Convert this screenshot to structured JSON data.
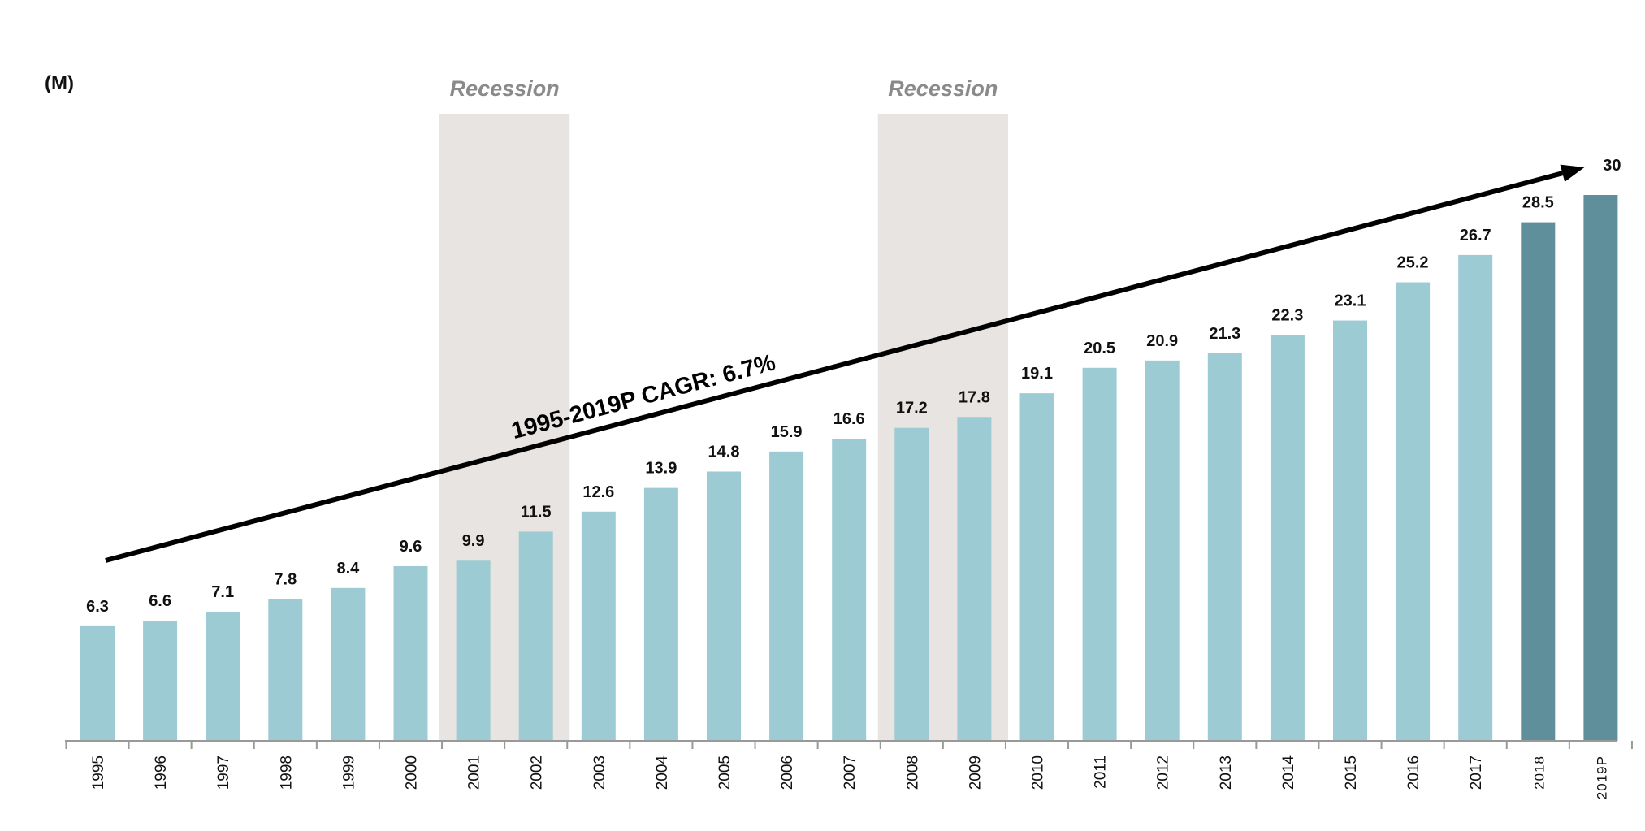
{
  "chart_data": {
    "type": "bar",
    "unit_label": "(M)",
    "categories": [
      "1995",
      "1996",
      "1997",
      "1998",
      "1999",
      "2000",
      "2001",
      "2002",
      "2003",
      "2004",
      "2005",
      "2006",
      "2007",
      "2008",
      "2009",
      "2010",
      "2011",
      "2012",
      "2013",
      "2014",
      "2015",
      "2016",
      "2017",
      "2018",
      "2019P"
    ],
    "values": [
      6.3,
      6.6,
      7.1,
      7.8,
      8.4,
      9.6,
      9.9,
      11.5,
      12.6,
      13.9,
      14.8,
      15.9,
      16.6,
      17.2,
      17.8,
      19.1,
      20.5,
      20.9,
      21.3,
      22.3,
      23.1,
      25.2,
      26.7,
      28.5,
      30
    ],
    "value_labels": [
      "6.3",
      "6.6",
      "7.1",
      "7.8",
      "8.4",
      "9.6",
      "9.9",
      "11.5",
      "12.6",
      "13.9",
      "14.8",
      "15.9",
      "16.6",
      "17.2",
      "17.8",
      "19.1",
      "20.5",
      "20.9",
      "21.3",
      "22.3",
      "23.1",
      "25.2",
      "26.7",
      "28.5",
      "30"
    ],
    "highlighted_categories": [
      "2018",
      "2019P"
    ],
    "recessions": [
      {
        "label": "Recession",
        "from": "2001",
        "to": "2002"
      },
      {
        "label": "Recession",
        "from": "2008",
        "to": "2009"
      }
    ],
    "trend_annotation": {
      "label": "1995-2019P CAGR: 6.7%",
      "from": "1995",
      "to": "2019P"
    },
    "ylim": [
      0,
      33
    ],
    "grid": false,
    "colors": {
      "bar": "#9ccbd3",
      "bar_highlight": "#5f8f9b",
      "recession_band": "#e7e4e2",
      "axis": "#999999",
      "trend": "#000000"
    }
  }
}
